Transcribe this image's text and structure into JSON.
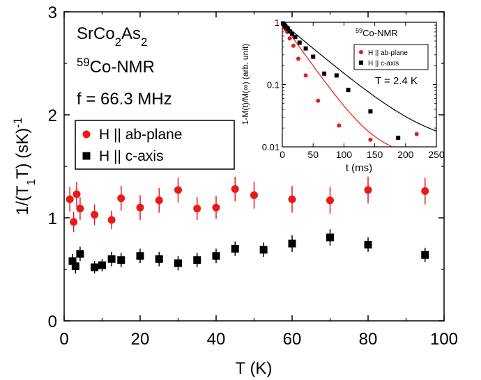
{
  "chart_data": [
    {
      "type": "scatter",
      "xlabel": "T (K)",
      "ylabel": "1/(T1T) (sK)-1",
      "xlim": [
        0,
        100
      ],
      "ylim": [
        0,
        3
      ],
      "x_ticks": [
        0,
        20,
        40,
        60,
        80,
        100
      ],
      "y_ticks": [
        0,
        1,
        2,
        3
      ],
      "annotations": {
        "compound": "SrCo2As2",
        "nmr": "59Co-NMR",
        "freq": "f = 66.3 MHz"
      },
      "legend_position": "upper-left",
      "colors": {
        "ab": "#e8191a",
        "c": "#000000"
      },
      "series": [
        {
          "name": "H || ab-plane",
          "marker": "circle",
          "points": [
            [
              1.5,
              1.18,
              0.12
            ],
            [
              2.5,
              0.96,
              0.1
            ],
            [
              3.3,
              1.23,
              0.12
            ],
            [
              4.2,
              1.09,
              0.11
            ],
            [
              8,
              1.03,
              0.1
            ],
            [
              12.5,
              0.98,
              0.09
            ],
            [
              15,
              1.19,
              0.12
            ],
            [
              20,
              1.1,
              0.12
            ],
            [
              25,
              1.17,
              0.12
            ],
            [
              30,
              1.27,
              0.12
            ],
            [
              35,
              1.09,
              0.11
            ],
            [
              40,
              1.1,
              0.11
            ],
            [
              45,
              1.28,
              0.12
            ],
            [
              50,
              1.22,
              0.13
            ],
            [
              60,
              1.18,
              0.13
            ],
            [
              70,
              1.17,
              0.13
            ],
            [
              80,
              1.27,
              0.13
            ],
            [
              95,
              1.26,
              0.13
            ]
          ]
        },
        {
          "name": "H || c-axis",
          "marker": "square",
          "points": [
            [
              2.2,
              0.58,
              0.07
            ],
            [
              3.0,
              0.53,
              0.07
            ],
            [
              4.2,
              0.65,
              0.07
            ],
            [
              8,
              0.52,
              0.06
            ],
            [
              10,
              0.54,
              0.06
            ],
            [
              12.5,
              0.6,
              0.07
            ],
            [
              15,
              0.59,
              0.07
            ],
            [
              20,
              0.63,
              0.07
            ],
            [
              25,
              0.6,
              0.07
            ],
            [
              30,
              0.56,
              0.07
            ],
            [
              35,
              0.59,
              0.07
            ],
            [
              40,
              0.63,
              0.07
            ],
            [
              45,
              0.7,
              0.07
            ],
            [
              52.5,
              0.69,
              0.07
            ],
            [
              60,
              0.75,
              0.08
            ],
            [
              70,
              0.81,
              0.08
            ],
            [
              80,
              0.74,
              0.07
            ],
            [
              95,
              0.64,
              0.07
            ]
          ]
        }
      ]
    },
    {
      "type": "scatter",
      "xlabel": "t (ms)",
      "ylabel": "1-M(t)/M(∞) (arb. unit)",
      "xlim": [
        0,
        250
      ],
      "ylim": [
        0.01,
        1
      ],
      "yscale": "log",
      "x_ticks": [
        0,
        50,
        100,
        150,
        200,
        250
      ],
      "y_tick_labels": [
        "0.01",
        "0.1",
        "1"
      ],
      "annotations": {
        "nmr": "59Co-NMR",
        "temp": "T = 2.4 K"
      },
      "legend_position": "upper-right",
      "series": [
        {
          "name": "H || ab-plane",
          "marker": "circle",
          "points": [
            [
              1,
              0.95
            ],
            [
              2,
              0.9
            ],
            [
              3,
              0.85
            ],
            [
              5,
              0.78
            ],
            [
              8,
              0.7
            ],
            [
              12,
              0.55
            ],
            [
              18,
              0.42
            ],
            [
              26,
              0.26
            ],
            [
              38,
              0.14
            ],
            [
              58,
              0.055
            ],
            [
              92,
              0.022
            ],
            [
              143,
              0.013
            ],
            [
              218,
              0.016
            ]
          ],
          "fit": {
            "type": "exponential",
            "A": 0.97,
            "tau_ms": 31,
            "C": 0.007
          }
        },
        {
          "name": "H || c-axis",
          "marker": "square",
          "points": [
            [
              1,
              0.96
            ],
            [
              3,
              0.92
            ],
            [
              5,
              0.86
            ],
            [
              7,
              0.82
            ],
            [
              9,
              0.79
            ],
            [
              12,
              0.72
            ],
            [
              16,
              0.65
            ],
            [
              21,
              0.58
            ],
            [
              28,
              0.47
            ],
            [
              38,
              0.38
            ],
            [
              50,
              0.28
            ],
            [
              68,
              0.15
            ],
            [
              88,
              0.14
            ],
            [
              107,
              0.082
            ],
            [
              143,
              0.037
            ],
            [
              188,
              0.014
            ]
          ],
          "fit": {
            "type": "exponential",
            "A": 0.97,
            "tau_ms": 52,
            "C": 0.01
          }
        }
      ]
    }
  ]
}
